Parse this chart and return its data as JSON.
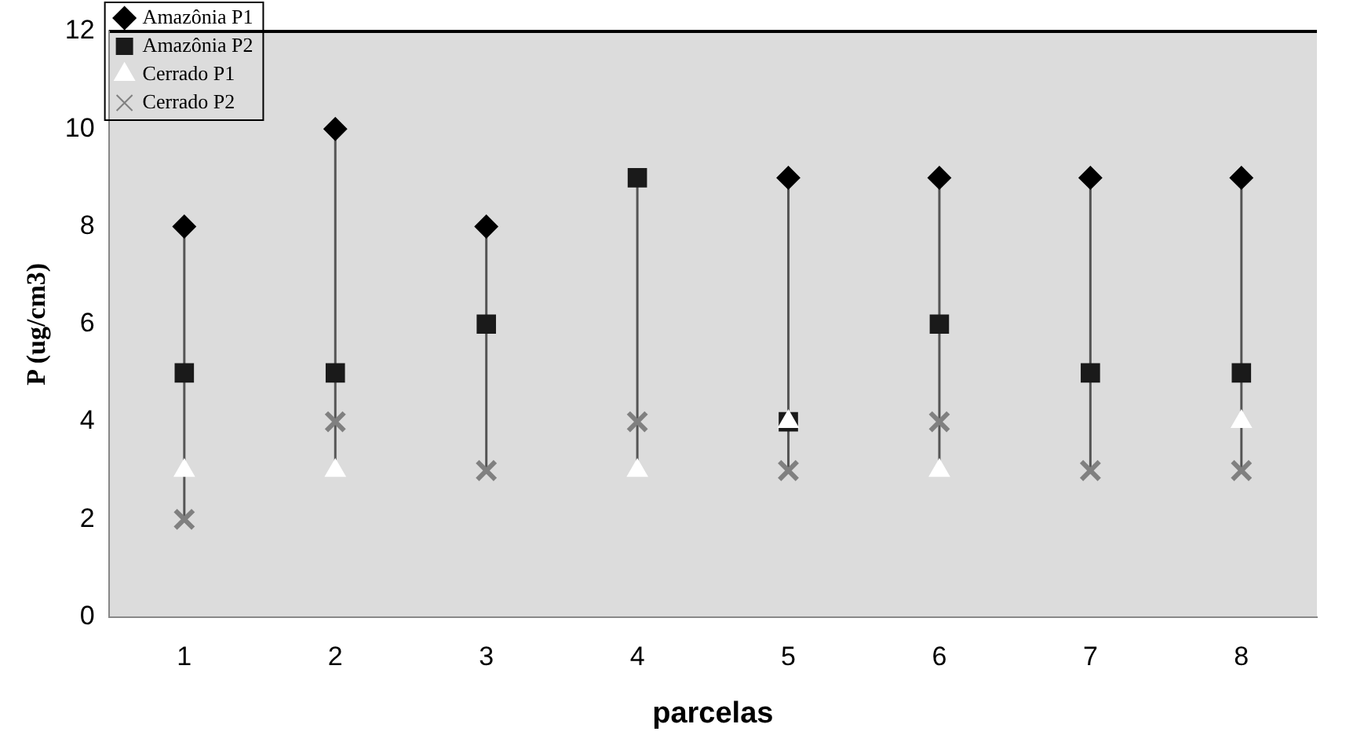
{
  "chart_data": {
    "type": "scatter",
    "xlabel": "parcelas",
    "ylabel": "P (ug/cm3)",
    "categories": [
      "1",
      "2",
      "3",
      "4",
      "5",
      "6",
      "7",
      "8"
    ],
    "ylim": [
      0,
      12
    ],
    "yticks": [
      0,
      2,
      4,
      6,
      8,
      10,
      12
    ],
    "grid": false,
    "legend": "top left",
    "series": [
      {
        "name": "Amazônia P1",
        "color": "#000000",
        "marker": "diamond",
        "values": [
          8,
          10,
          8,
          null,
          9,
          9,
          9,
          9
        ]
      },
      {
        "name": "Amazônia P2",
        "color": "#1a1a1a",
        "marker": "square",
        "values": [
          5,
          5,
          6,
          9,
          4,
          6,
          5,
          5
        ]
      },
      {
        "name": "Cerrado P1",
        "color": "#ffffff",
        "marker": "triangle",
        "values": [
          3,
          3,
          null,
          3,
          4,
          3,
          null,
          4
        ]
      },
      {
        "name": "Cerrado P2",
        "color": "#808080",
        "marker": "cross",
        "values": [
          2,
          4,
          3,
          4,
          3,
          4,
          3,
          3
        ]
      }
    ]
  }
}
